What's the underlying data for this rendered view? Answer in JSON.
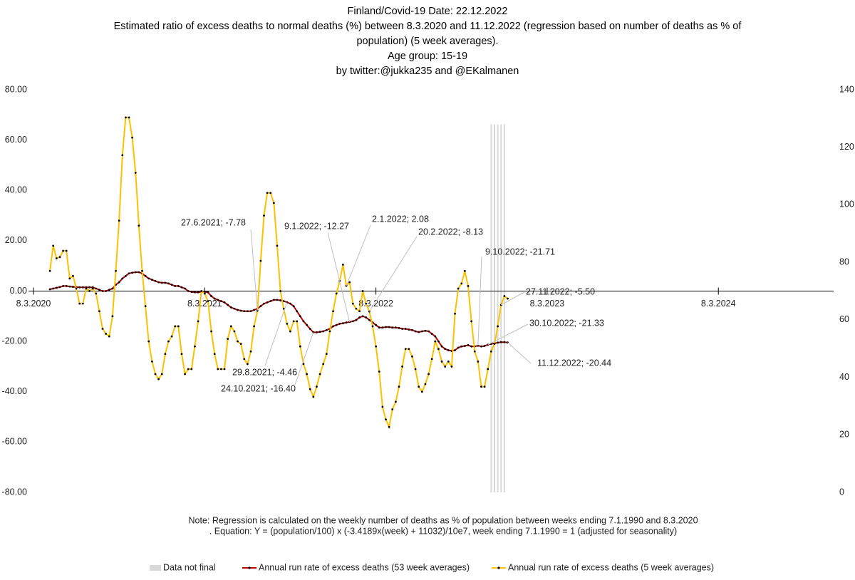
{
  "chart_data": {
    "type": "line",
    "title": [
      "Finland/Covid-19  Date: 22.12.2022",
      "Estimated ratio of excess deaths to normal deaths (%) between 8.3.2020 and 11.12.2022 (regression based on number of deaths as % of",
      "population) (5 week averages).",
      "Age group: 15-19",
      "by twitter:@jukka235 and @EKalmanen"
    ],
    "note": [
      "Note: Regression is calculated on the weekly number of deaths as % of population between weeks ending 7.1.1990 and 8.3.2020",
      ". Equation: Y = (population/100) x (-3.4189x(week)  + 11032)/10e7, week ending 7.1.1990 = 1 (adjusted for seasonality)"
    ],
    "annotations": [
      "27.6.2021; -7.78",
      "9.1.2022; -12.27",
      "2.1.2022; 2.08",
      "20.2.2022; -8.13",
      "9.10.2022; -21.71",
      "27.11.2022; -5.50",
      "30.10.2022; -21.33",
      "11.12.2022; -20.44",
      "29.8.2021; -4.46",
      "24.10.2021; -16.40"
    ],
    "x": [
      0,
      1,
      2,
      3,
      4,
      5,
      6,
      7,
      8,
      9,
      10,
      11,
      12,
      13,
      14,
      15,
      16,
      17,
      18,
      19,
      20,
      21,
      22,
      23,
      24,
      25,
      26,
      27,
      28,
      29,
      30,
      31,
      32,
      33,
      34,
      35,
      36,
      37,
      38,
      39,
      40,
      41,
      42,
      43,
      44,
      45,
      46,
      47,
      48,
      49,
      50,
      51,
      52,
      53,
      54,
      55,
      56,
      57,
      58,
      59,
      60,
      61,
      62,
      63,
      64,
      65,
      66,
      67,
      68,
      69,
      70,
      71,
      72,
      73,
      74,
      75,
      76,
      77,
      78,
      79,
      80,
      81,
      82,
      83,
      84,
      85,
      86,
      87,
      88,
      89,
      90,
      91,
      92,
      93,
      94,
      95,
      96,
      97,
      98,
      99,
      100,
      101,
      102,
      103,
      104,
      105,
      106,
      107,
      108,
      109,
      110,
      111,
      112,
      113,
      114,
      115,
      116,
      117,
      118,
      119,
      120,
      121,
      122,
      123,
      124,
      125,
      126,
      127,
      128,
      129,
      130,
      131,
      132,
      133,
      134,
      135,
      136,
      137,
      138,
      139,
      140,
      141,
      142,
      143,
      144
    ],
    "xlim": [
      0,
      243
    ],
    "xticks": [
      {
        "value": 0,
        "label": "8.3.2020"
      },
      {
        "value": 52,
        "label": "8.3.2021"
      },
      {
        "value": 104,
        "label": "8.3.2022"
      },
      {
        "value": 156,
        "label": "8.3.2023"
      },
      {
        "value": 208,
        "label": "8.3.2024"
      }
    ],
    "ylim": [
      -80,
      80
    ],
    "yticks": [
      {
        "value": -80,
        "label": "-80.00"
      },
      {
        "value": -60,
        "label": "-60.00"
      },
      {
        "value": -40,
        "label": "-40.00"
      },
      {
        "value": -20,
        "label": "-20.00"
      },
      {
        "value": 0,
        "label": "0.00"
      },
      {
        "value": 20,
        "label": "20.00"
      },
      {
        "value": 40,
        "label": "40.00"
      },
      {
        "value": 60,
        "label": "60.00"
      },
      {
        "value": 80,
        "label": "80.00"
      }
    ],
    "y2lim": [
      0,
      140
    ],
    "y2ticks": [
      0,
      20,
      40,
      60,
      80,
      100,
      120,
      140
    ],
    "series": [
      {
        "name": "Data not final",
        "type": "bar",
        "axis": "y2",
        "color": "#d9d9d9",
        "values": [
          null,
          null,
          null,
          null,
          null,
          null,
          null,
          null,
          null,
          null,
          null,
          null,
          null,
          null,
          null,
          null,
          null,
          null,
          null,
          null,
          null,
          null,
          null,
          null,
          null,
          null,
          null,
          null,
          null,
          null,
          null,
          null,
          null,
          null,
          null,
          null,
          null,
          null,
          null,
          null,
          null,
          null,
          null,
          null,
          null,
          null,
          null,
          null,
          null,
          null,
          null,
          null,
          null,
          null,
          null,
          null,
          null,
          null,
          null,
          null,
          null,
          null,
          null,
          null,
          null,
          null,
          null,
          null,
          null,
          null,
          null,
          null,
          null,
          null,
          null,
          null,
          null,
          null,
          null,
          null,
          null,
          null,
          null,
          null,
          null,
          null,
          null,
          null,
          null,
          null,
          null,
          null,
          null,
          null,
          null,
          null,
          null,
          null,
          null,
          null,
          null,
          null,
          null,
          null,
          null,
          null,
          null,
          null,
          null,
          null,
          null,
          null,
          null,
          null,
          null,
          null,
          null,
          null,
          null,
          null,
          null,
          null,
          null,
          null,
          null,
          null,
          null,
          null,
          null,
          null,
          null,
          null,
          null,
          null,
          null,
          null,
          null,
          null,
          null,
          128,
          128,
          128,
          128,
          128,
          null
        ]
      },
      {
        "name": "Annual run rate of excess deaths (53 week averages)",
        "type": "line",
        "color": "#c00000",
        "values": [
          null,
          null,
          null,
          null,
          null,
          0.7,
          1,
          1.3,
          1.6,
          2,
          2,
          1.8,
          1.7,
          1.6,
          1.5,
          1.5,
          1.5,
          1.5,
          1.5,
          1,
          0.5,
          0,
          0,
          0.5,
          1,
          2.5,
          3.5,
          5,
          6,
          7,
          7.3,
          7.5,
          7.5,
          7,
          6,
          5,
          4.5,
          4,
          3.5,
          3.3,
          3.3,
          3,
          2.5,
          2,
          2,
          1.5,
          1,
          0,
          -0.3,
          -0.5,
          -0.5,
          -0.3,
          -0.3,
          -0.5,
          -2,
          -3,
          -3.5,
          -4,
          -4.5,
          -5.5,
          -6.5,
          -7,
          -7.5,
          -7.8,
          -8,
          -8,
          -8,
          -7.5,
          -7,
          -6,
          -5,
          -4.5,
          -4,
          -3.5,
          -3.5,
          -3.7,
          -4,
          -4.46,
          -5,
          -6,
          -8,
          -10,
          -12,
          -13.5,
          -15,
          -16.4,
          -16.4,
          -16.2,
          -16,
          -15.5,
          -15,
          -14,
          -13.5,
          -13,
          -12.8,
          -12.5,
          -12.27,
          -12,
          -11.5,
          -10.5,
          -10,
          -10.5,
          -11.5,
          -12.5,
          -13.5,
          -14.5,
          -14.5,
          -14.3,
          -14.3,
          -14.5,
          -14.5,
          -14.7,
          -15,
          -15,
          -15.3,
          -15.5,
          -16,
          -16.3,
          -16,
          -15.8,
          -16,
          -17,
          -18,
          -20,
          -22,
          -23,
          -23.5,
          -23.8,
          -23.5,
          -22.5,
          -22,
          -21.8,
          -21.5,
          -22,
          -22,
          -21.71,
          -22,
          -21.8,
          -21.33,
          -21,
          -20.8,
          -20.5,
          -20.3,
          -20.3,
          -20.44
        ]
      },
      {
        "name": "Annual run rate of excess deaths (5 week averages)",
        "type": "line",
        "color": "#ffc000",
        "values": [
          null,
          null,
          null,
          null,
          null,
          8,
          18,
          13,
          13.5,
          16,
          16,
          5,
          6,
          1,
          -5,
          -5,
          1,
          0,
          1,
          -1,
          -8,
          -15,
          -17,
          -18,
          -10,
          8,
          28,
          54,
          69,
          69,
          61,
          47,
          26,
          8,
          -6,
          -20,
          -28,
          -33,
          -35,
          -33,
          -25,
          -20,
          -18,
          -14,
          -14,
          -25,
          -33,
          -31,
          -31,
          -22,
          -12,
          0,
          -1,
          -4,
          -16,
          -25,
          -31,
          -31,
          -31,
          -19,
          -14,
          -16,
          -20,
          -21,
          -27,
          -29,
          -24,
          -14,
          -7.78,
          12,
          30,
          39,
          39,
          35,
          18,
          0,
          -7,
          -13,
          -16,
          -12,
          -12,
          -22,
          -29,
          -33,
          -39,
          -42,
          -38,
          -33,
          -29,
          -25,
          -16,
          -8,
          -1,
          4,
          10.5,
          2.08,
          3.5,
          -5,
          -7,
          -8,
          0,
          -5,
          -8.13,
          -14,
          -22,
          -32,
          -46,
          -51,
          -54,
          -47,
          -44,
          -38,
          -30,
          -23,
          -23,
          -26,
          -31,
          -38,
          -40,
          -37,
          -33,
          -27,
          -20,
          -23,
          -28,
          -30,
          -28,
          -30,
          -9,
          1,
          3,
          8,
          2,
          -12,
          -24,
          -28,
          -38,
          -38,
          -31,
          -24,
          -21,
          -14,
          -5.5,
          -2,
          -3
        ]
      }
    ]
  }
}
